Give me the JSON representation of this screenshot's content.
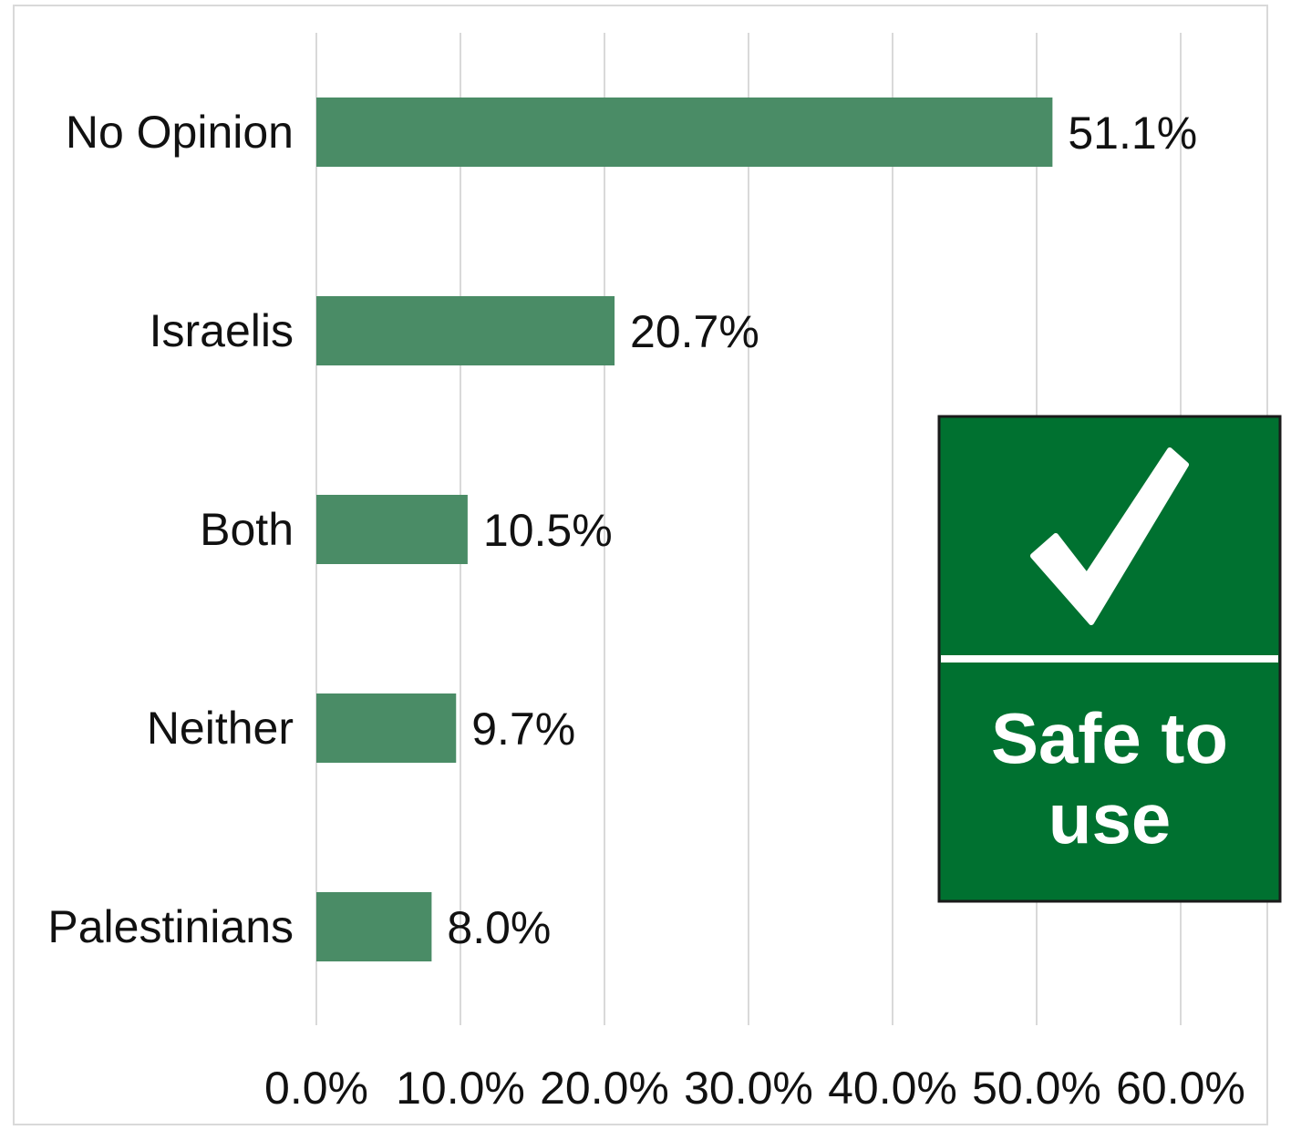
{
  "chart_data": {
    "type": "bar",
    "orientation": "horizontal",
    "title": "",
    "xlabel": "",
    "ylabel": "",
    "categories": [
      "No Opinion",
      "Israelis",
      "Both",
      "Neither",
      "Palestinians"
    ],
    "values": [
      51.1,
      20.7,
      10.5,
      9.7,
      8.0
    ],
    "value_labels": [
      "51.1%",
      "20.7%",
      "10.5%",
      "9.7%",
      "8.0%"
    ],
    "xlim": [
      0,
      60
    ],
    "xticks": [
      0,
      10,
      20,
      30,
      40,
      50,
      60
    ],
    "xtick_labels": [
      "0.0%",
      "10.0%",
      "20.0%",
      "30.0%",
      "40.0%",
      "50.0%",
      "60.0%"
    ],
    "grid": "vertical",
    "legend": "none",
    "bar_color": "#4a8c66",
    "grid_color": "#d9d9d9"
  },
  "sign": {
    "icon": "check-icon",
    "line1": "Safe to",
    "line2": "use",
    "background": "#007130",
    "foreground": "#ffffff"
  }
}
